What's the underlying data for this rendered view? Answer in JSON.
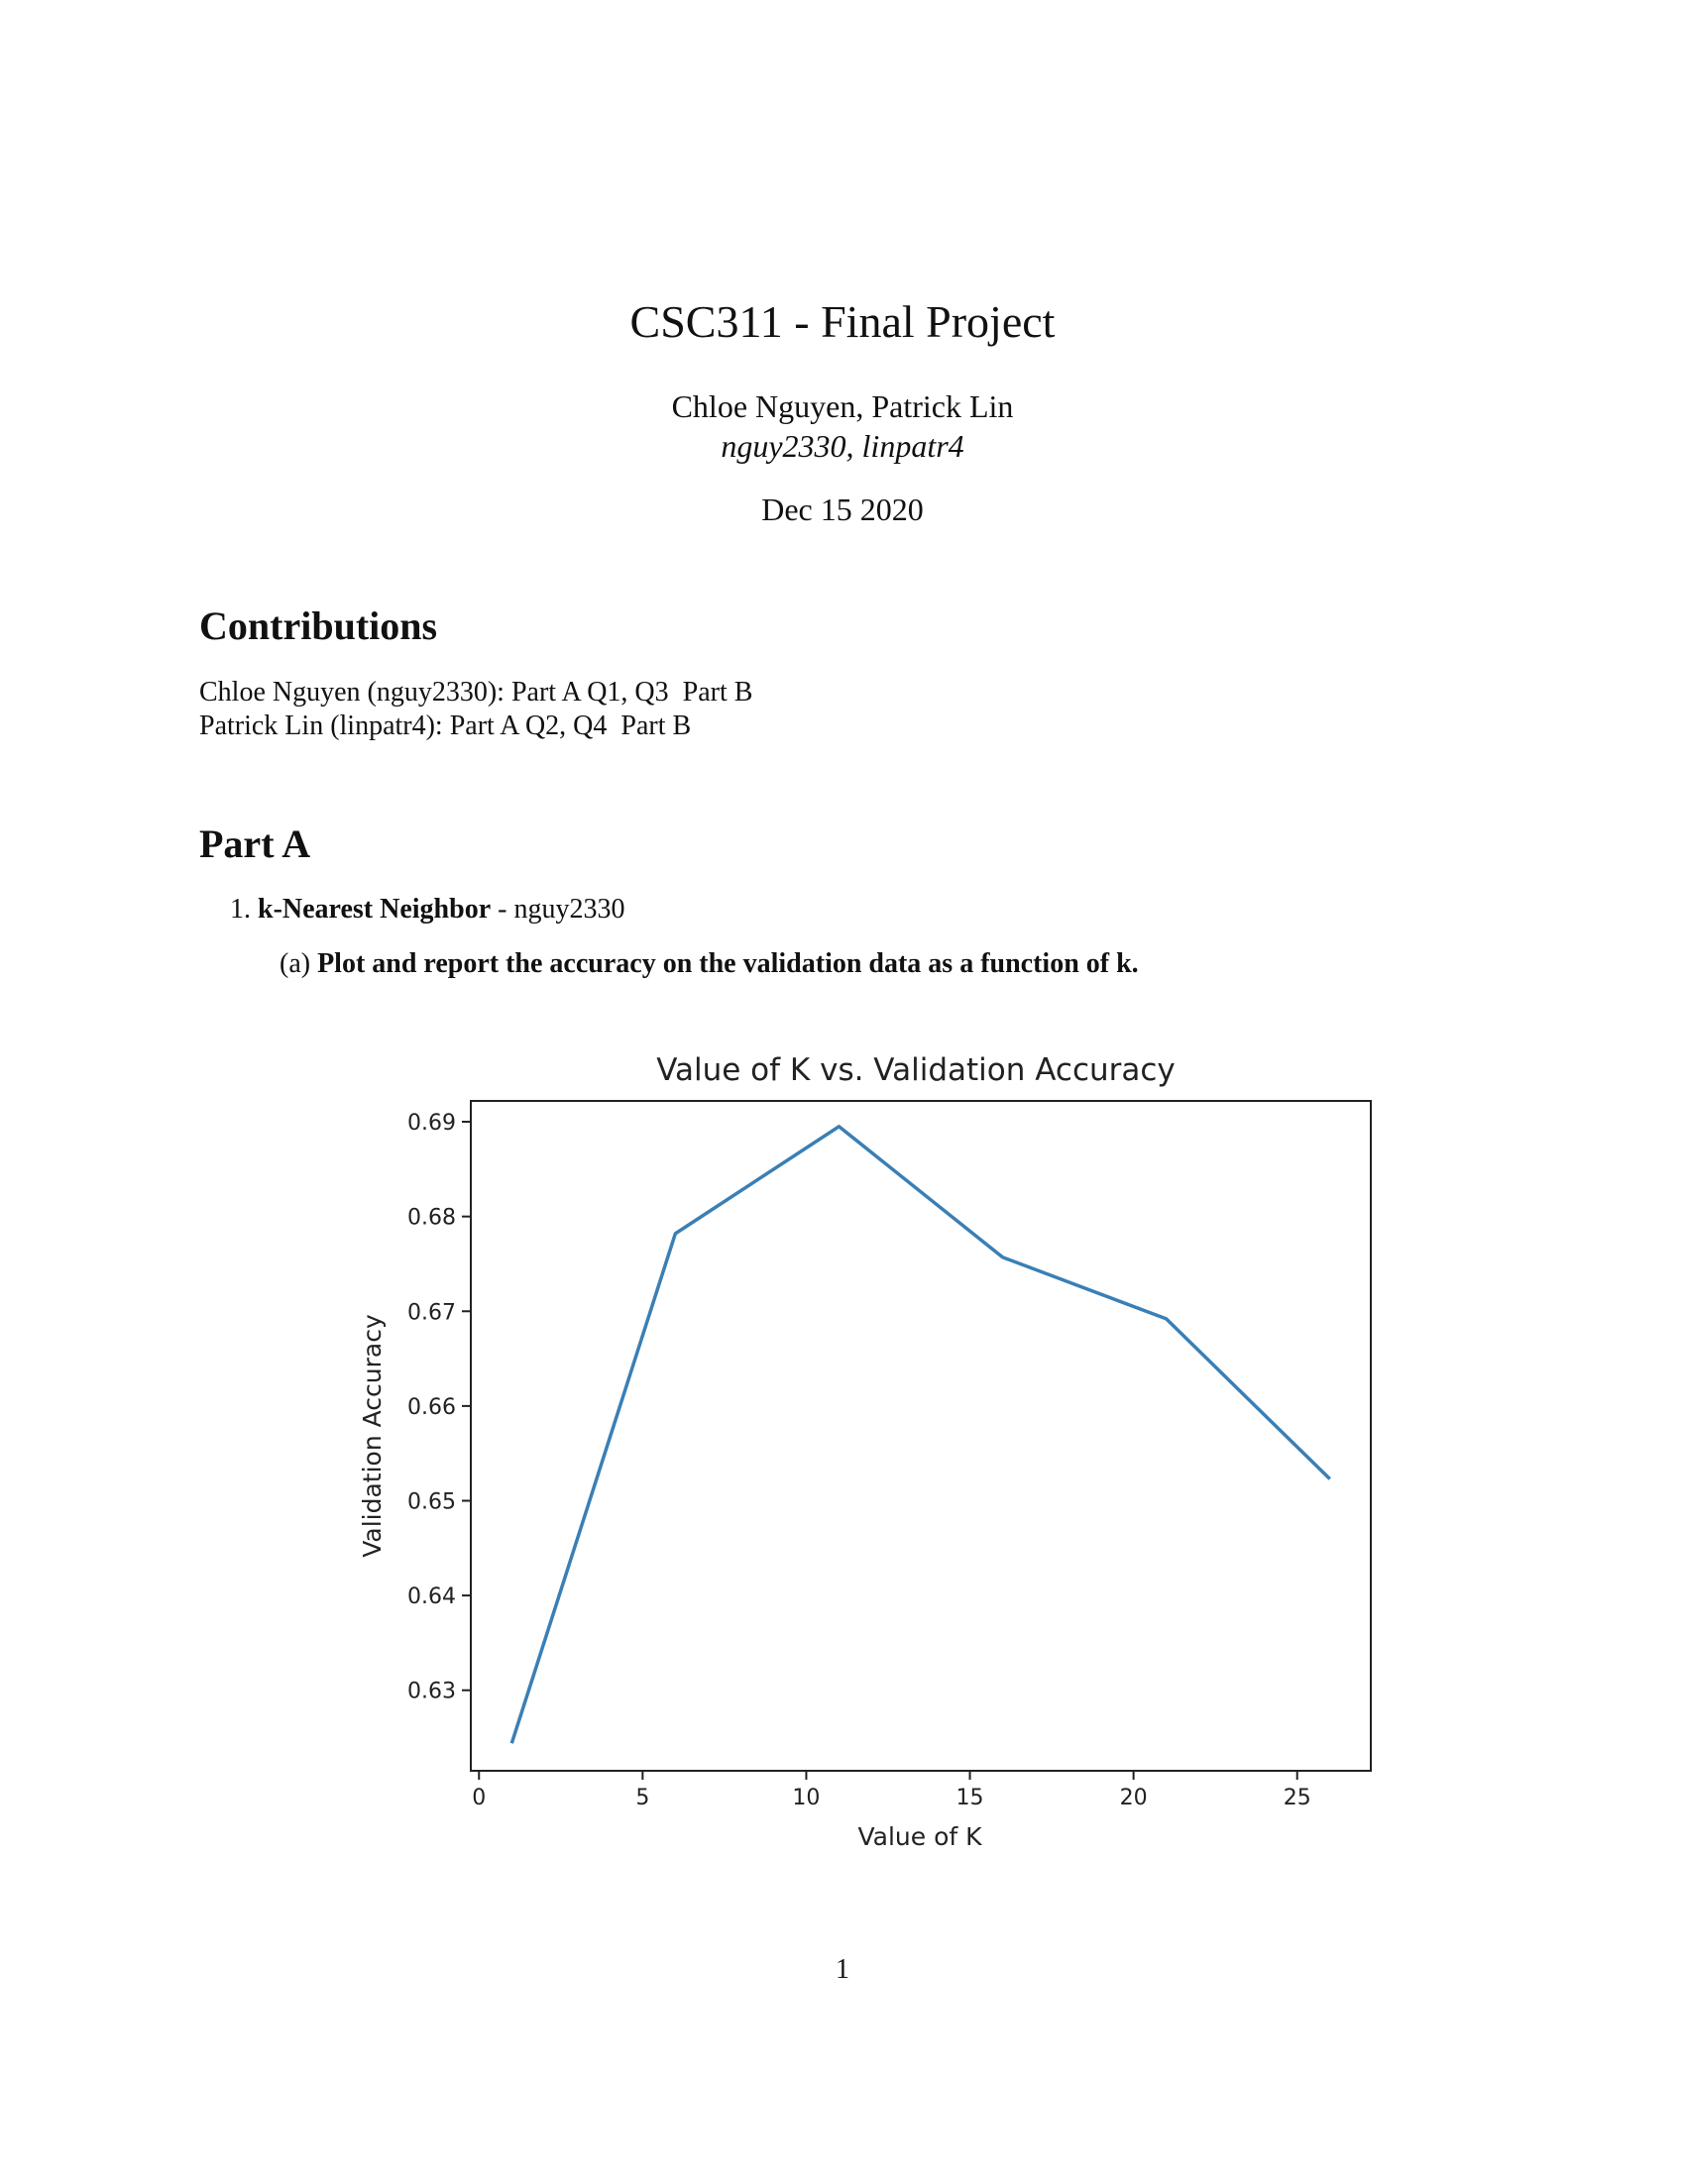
{
  "header": {
    "title": "CSC311 - Final Project",
    "authors": "Chloe Nguyen, Patrick Lin",
    "ids": "nguy2330, linpatr4",
    "date": "Dec 15 2020"
  },
  "contributions": {
    "heading": "Contributions",
    "lines": [
      "Chloe Nguyen (nguy2330): Part A Q1, Q3  Part B",
      "Patrick Lin (linpatr4): Part A Q2, Q4  Part B"
    ]
  },
  "part_a": {
    "heading": "Part  A",
    "question": {
      "number": "1.",
      "title": "k-Nearest Neighbor",
      "suffix": " - nguy2330"
    },
    "subquestion": {
      "label": "(a)",
      "text": "Plot and report the accuracy on the validation data as a function of k."
    }
  },
  "chart_data": {
    "type": "line",
    "title": "Value of K vs. Validation Accuracy",
    "xlabel": "Value of K",
    "ylabel": "Validation Accuracy",
    "x": [
      1,
      6,
      11,
      16,
      21,
      26
    ],
    "series": [
      {
        "values": [
          0.6244,
          0.6782,
          0.6895,
          0.6757,
          0.6692,
          0.6523
        ],
        "color": "#3a7fb5"
      }
    ],
    "xticks": [
      0,
      5,
      10,
      15,
      20,
      25
    ],
    "yticks": [
      0.63,
      0.64,
      0.65,
      0.66,
      0.67,
      0.68,
      0.69
    ],
    "xlim": [
      -0.25,
      27.25
    ],
    "ylim": [
      0.6215,
      0.6922
    ],
    "grid": false,
    "legend": "none"
  },
  "footer": {
    "page_number": "1"
  }
}
